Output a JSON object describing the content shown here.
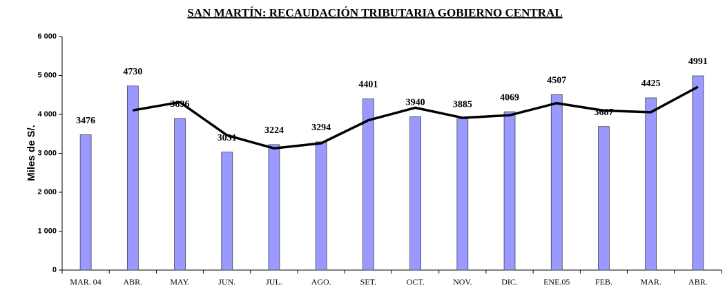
{
  "chart_data": {
    "type": "bar",
    "title": "SAN MARTÍN: RECAUDACIÓN TRIBUTARIA GOBIERNO CENTRAL",
    "ylabel": "Miles de S/.",
    "categories": [
      "MAR. 04",
      "ABR.",
      "MAY.",
      "JUN.",
      "JUL.",
      "AGO.",
      "SET.",
      "OCT.",
      "NOV.",
      "DIC.",
      "ENE.05",
      "FEB.",
      "MAR.",
      "ABR."
    ],
    "series": [
      {
        "type": "bar",
        "color": "#9999ff",
        "values": [
          3476,
          4730,
          3896,
          3031,
          3224,
          3294,
          4401,
          3940,
          3885,
          4069,
          4507,
          3687,
          4425,
          4991
        ]
      },
      {
        "type": "line",
        "color": "#000000",
        "values": [
          null,
          4103,
          4313,
          3463.5,
          3127.5,
          3259,
          3847.5,
          4170.5,
          3912.5,
          3977,
          4288,
          4097,
          4056,
          4708
        ]
      }
    ],
    "ylim": [
      0,
      6000
    ],
    "yticks": [
      {
        "value": 0,
        "label": "0"
      },
      {
        "value": 1000,
        "label": "1 000"
      },
      {
        "value": 2000,
        "label": "2 000"
      },
      {
        "value": 3000,
        "label": "3 000"
      },
      {
        "value": 4000,
        "label": "4 000"
      },
      {
        "value": 5000,
        "label": "5 000"
      },
      {
        "value": 6000,
        "label": "6 000"
      }
    ]
  }
}
